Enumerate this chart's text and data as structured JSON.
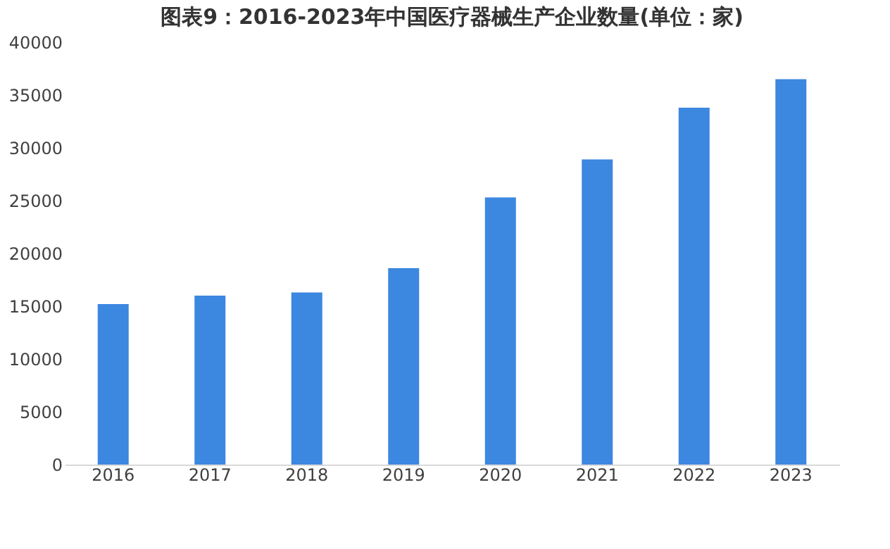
{
  "chart_data": {
    "type": "bar",
    "title": "图表9：2016-2023年中国医疗器械生产企业数量(单位：家)",
    "categories": [
      "2016",
      "2017",
      "2018",
      "2019",
      "2020",
      "2021",
      "2022",
      "2023"
    ],
    "values": [
      15200,
      16000,
      16300,
      18600,
      25300,
      28900,
      33800,
      36500
    ],
    "color": "#3c87e0",
    "ylim": [
      0,
      40000
    ],
    "yticks": [
      0,
      5000,
      10000,
      15000,
      20000,
      25000,
      30000,
      35000,
      40000
    ],
    "grid": false
  }
}
